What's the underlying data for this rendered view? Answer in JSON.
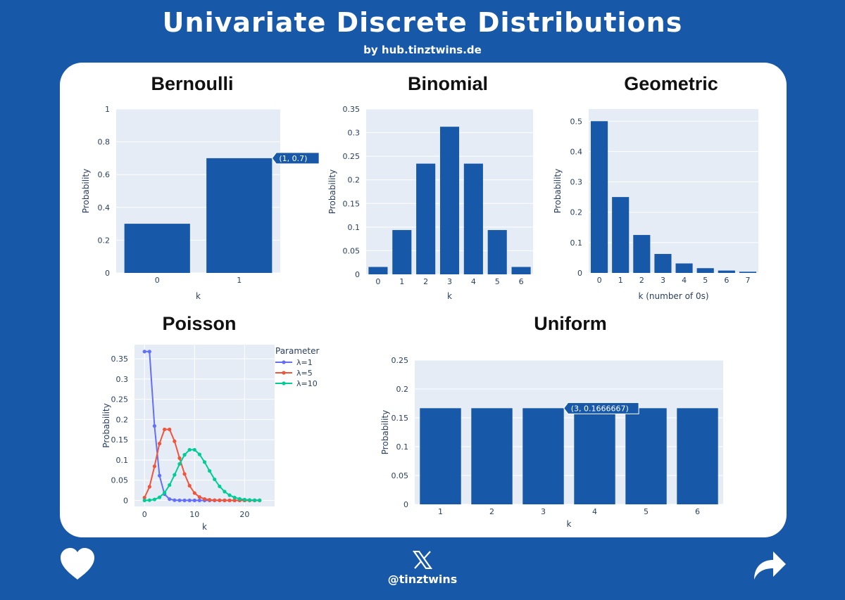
{
  "header": {
    "title": "Univariate Discrete Distributions",
    "subtitle": "by hub.tinztwins.de"
  },
  "footer": {
    "handle": "@tinztwins",
    "x_icon": "x-logo-icon",
    "like_icon": "heart-icon",
    "share_icon": "share-arrow-icon"
  },
  "colors": {
    "bar": "#1758a8",
    "plot_bg": "#e5ecf6",
    "page_bg": "#1758a8",
    "poisson": [
      "#636efa",
      "#ef553b",
      "#00cc96"
    ]
  },
  "chart_data": [
    {
      "id": "bernoulli",
      "type": "bar",
      "title": "Bernoulli",
      "categories": [
        "0",
        "1"
      ],
      "values": [
        0.3,
        0.7
      ],
      "xlabel": "k",
      "ylabel": "Probability",
      "ylim": [
        0,
        1
      ],
      "yticks": [
        0,
        0.2,
        0.4,
        0.6,
        0.8,
        1
      ],
      "yticklabels": [
        "0",
        "0.2",
        "0.4",
        "0.6",
        "0.8",
        "1"
      ],
      "hover": {
        "index": 1,
        "label": "(1, 0.7)"
      }
    },
    {
      "id": "binomial",
      "type": "bar",
      "title": "Binomial",
      "categories": [
        "0",
        "1",
        "2",
        "3",
        "4",
        "5",
        "6"
      ],
      "values": [
        0.015625,
        0.09375,
        0.234375,
        0.3125,
        0.234375,
        0.09375,
        0.015625
      ],
      "xlabel": "k",
      "ylabel": "Probability",
      "ylim": [
        0,
        0.35
      ],
      "yticks": [
        0,
        0.05,
        0.1,
        0.15,
        0.2,
        0.25,
        0.3,
        0.35
      ],
      "yticklabels": [
        "0",
        "0.05",
        "0.1",
        "0.15",
        "0.2",
        "0.25",
        "0.3",
        "0.35"
      ]
    },
    {
      "id": "geometric",
      "type": "bar",
      "title": "Geometric",
      "categories": [
        "0",
        "1",
        "2",
        "3",
        "4",
        "5",
        "6",
        "7"
      ],
      "values": [
        0.5,
        0.25,
        0.125,
        0.0625,
        0.03125,
        0.015625,
        0.0078125,
        0.00390625
      ],
      "xlabel": "k (number of 0s)",
      "ylabel": "Probability",
      "ylim": [
        0,
        0.54
      ],
      "yticks": [
        0,
        0.1,
        0.2,
        0.3,
        0.4,
        0.5
      ],
      "yticklabels": [
        "0",
        "0.1",
        "0.2",
        "0.3",
        "0.4",
        "0.5"
      ]
    },
    {
      "id": "poisson",
      "type": "line",
      "title": "Poisson",
      "x": [
        0,
        1,
        2,
        3,
        4,
        5,
        6,
        7,
        8,
        9,
        10,
        11,
        12,
        13,
        14,
        15,
        16,
        17,
        18,
        19,
        20,
        21,
        22,
        23
      ],
      "series": [
        {
          "name": "λ=1",
          "values": [
            0.3679,
            0.3679,
            0.1839,
            0.0613,
            0.0153,
            0.0031,
            0.0005,
            0.0001,
            0,
            0,
            0,
            0,
            0,
            0,
            0,
            0,
            0,
            0,
            0,
            0,
            0,
            0,
            0,
            0
          ]
        },
        {
          "name": "λ=5",
          "values": [
            0.0067,
            0.0337,
            0.0842,
            0.1404,
            0.1755,
            0.1755,
            0.1462,
            0.1044,
            0.0653,
            0.0363,
            0.0181,
            0.0082,
            0.0034,
            0.0013,
            0.0005,
            0.0002,
            0,
            0,
            0,
            0,
            0,
            0,
            0,
            0
          ]
        },
        {
          "name": "λ=10",
          "values": [
            0,
            0.0005,
            0.0023,
            0.0076,
            0.0189,
            0.0378,
            0.0631,
            0.0901,
            0.1126,
            0.1251,
            0.1251,
            0.1137,
            0.0948,
            0.0729,
            0.0521,
            0.0347,
            0.0217,
            0.0128,
            0.0071,
            0.0037,
            0.0019,
            0.0009,
            0.0004,
            0.0002
          ]
        }
      ],
      "legend_title": "Parameter",
      "xlabel": "k",
      "ylabel": "Probability",
      "xlim": [
        -2,
        26
      ],
      "ylim": [
        -0.015,
        0.385
      ],
      "xticks": [
        0,
        10,
        20
      ],
      "xticklabels": [
        "0",
        "10",
        "20"
      ],
      "yticks": [
        0,
        0.05,
        0.1,
        0.15,
        0.2,
        0.25,
        0.3,
        0.35
      ],
      "yticklabels": [
        "0",
        "0.05",
        "0.1",
        "0.15",
        "0.2",
        "0.25",
        "0.3",
        "0.35"
      ]
    },
    {
      "id": "uniform",
      "type": "bar",
      "title": "Uniform",
      "categories": [
        "1",
        "2",
        "3",
        "4",
        "5",
        "6"
      ],
      "values": [
        0.1666667,
        0.1666667,
        0.1666667,
        0.1666667,
        0.1666667,
        0.1666667
      ],
      "xlabel": "k",
      "ylabel": "Probability",
      "ylim": [
        0,
        0.25
      ],
      "yticks": [
        0,
        0.05,
        0.1,
        0.15,
        0.2,
        0.25
      ],
      "yticklabels": [
        "0",
        "0.05",
        "0.1",
        "0.15",
        "0.2",
        "0.25"
      ],
      "hover": {
        "index": 2,
        "label": "(3, 0.1666667)"
      }
    }
  ]
}
